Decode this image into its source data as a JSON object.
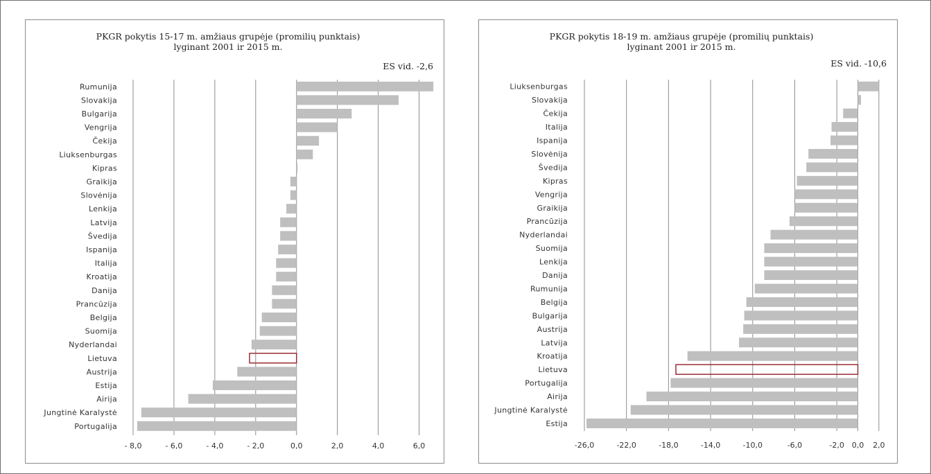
{
  "charts": [
    {
      "title_line1": "PKGR pokytis 15-17 m. amžiaus grupėje (promilių punktais)",
      "title_line2": "lyginant 2001 ir 2015 m.",
      "avg_label": "ES vid. -2,6"
    },
    {
      "title_line1": "PKGR pokytis 18-19 m. amžiaus grupėje (promilių punktais)",
      "title_line2": "lyginant 2001 ir 2015 m.",
      "avg_label": "ES vid. -10,6"
    }
  ],
  "chart_data": [
    {
      "type": "bar",
      "orientation": "horizontal",
      "title": "PKGR pokytis 15-17 m. amžiaus grupėje (promilių punktais) lyginant 2001 ir 2015 m.",
      "annotation": "ES vid. -2,6",
      "categories": [
        "Rumunija",
        "Slovakija",
        "Bulgarija",
        "Vengrija",
        "Čekija",
        "Liuksenburgas",
        "Kipras",
        "Graikija",
        "Slovėnija",
        "Lenkija",
        "Latvija",
        "Švedija",
        "Ispanija",
        "Italija",
        "Kroatija",
        "Danija",
        "Prancūzija",
        "Belgija",
        "Suomija",
        "Nyderlandai",
        "Lietuva",
        "Austrija",
        "Estija",
        "Airija",
        "Jungtinė Karalystė",
        "Portugalija"
      ],
      "values": [
        6.7,
        5.0,
        2.7,
        2.0,
        1.1,
        0.8,
        0.05,
        -0.3,
        -0.3,
        -0.5,
        -0.8,
        -0.8,
        -0.9,
        -1.0,
        -1.0,
        -1.2,
        -1.2,
        -1.7,
        -1.8,
        -2.2,
        -2.3,
        -2.9,
        -4.1,
        -5.3,
        -7.6,
        -7.8
      ],
      "highlight": "Lietuva",
      "xlim": [
        -8.0,
        7.0
      ],
      "ticks": [
        "- 8,0",
        "- 6,0",
        "- 4,0",
        "- 2,0",
        "0,0",
        "2,0",
        "4,0",
        "6,0"
      ],
      "tick_values": [
        -8,
        -6,
        -4,
        -2,
        0,
        2,
        4,
        6
      ],
      "grid": true
    },
    {
      "type": "bar",
      "orientation": "horizontal",
      "title": "PKGR pokytis 18-19 m. amžiaus grupėje (promilių punktais) lyginant 2001 ir 2015 m.",
      "annotation": "ES vid. -10,6",
      "categories": [
        "Liuksenburgas",
        "Slovakija",
        "Čekija",
        "Italija",
        "Ispanija",
        "Slovėnija",
        "Švedija",
        "Kipras",
        "Vengrija",
        "Graikija",
        "Prancūzija",
        "Nyderlandai",
        "Suomija",
        "Lenkija",
        "Danija",
        "Rumunija",
        "Belgija",
        "Bulgarija",
        "Austrija",
        "Latvija",
        "Kroatija",
        "Lietuva",
        "Portugalija",
        "Airija",
        "Jungtinė Karalystė",
        "Estija"
      ],
      "values": [
        2.0,
        0.3,
        -1.4,
        -2.5,
        -2.6,
        -4.7,
        -4.9,
        -5.8,
        -6.0,
        -6.0,
        -6.5,
        -8.3,
        -8.9,
        -8.9,
        -8.9,
        -9.8,
        -10.6,
        -10.8,
        -10.9,
        -11.3,
        -16.2,
        -17.3,
        -17.8,
        -20.1,
        -21.6,
        -25.8
      ],
      "highlight": "Lietuva",
      "xlim": [
        -26.0,
        3.0
      ],
      "ticks": [
        "-26,0",
        "-22,0",
        "-18,0",
        "-14,0",
        "-10,0",
        "-6,0",
        "-2,0",
        "0,0",
        "2,0"
      ],
      "tick_values": [
        -26,
        -22,
        -18,
        -14,
        -10,
        -6,
        -2,
        0,
        2
      ],
      "grid": true
    }
  ]
}
